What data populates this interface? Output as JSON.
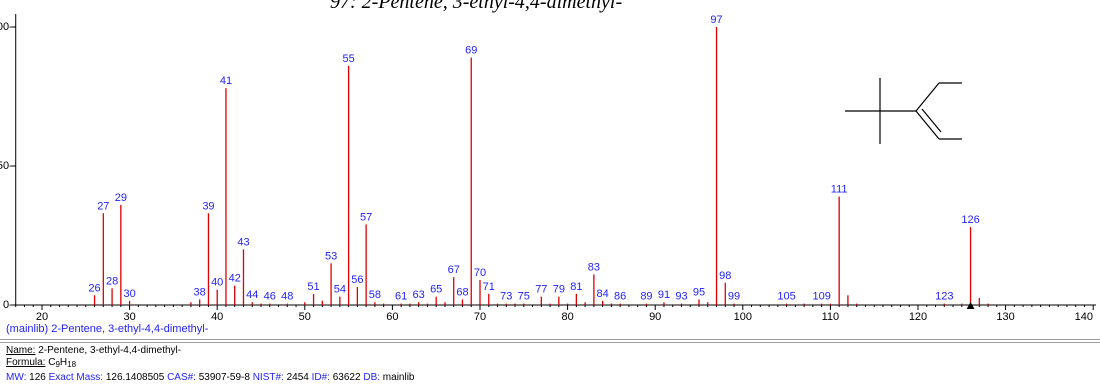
{
  "title": "97:    2-Pentene, 3-ethyl-4,4-dimethyl-",
  "library_caption": "(mainlib) 2-Pentene, 3-ethyl-4,4-dimethyl-",
  "compound": {
    "name_label": "Name:",
    "name": "2-Pentene, 3-ethyl-4,4-dimethyl-",
    "formula_label": "Formula:",
    "formula_main": "C",
    "formula_sub1": "9",
    "formula_mid": "H",
    "formula_sub2": "18",
    "mw_label": "MW:",
    "mw": "126",
    "exact_mass_label": "Exact Mass:",
    "exact_mass": "126.1408505",
    "cas_label": "CAS#:",
    "cas": "53907-59-8",
    "nist_label": "NIST#:",
    "nist": "2454",
    "id_label": "ID#:",
    "id": "63622",
    "db_label": "DB:",
    "db": "mainlib"
  },
  "colors": {
    "peak": "#e00000",
    "label": "#1f1fff",
    "axis": "#000000",
    "structure": "#000000"
  },
  "chart_data": {
    "type": "bar",
    "title": "2-Pentene, 3-ethyl-4,4-dimethyl-",
    "xlabel": "",
    "ylabel": "",
    "xlim": [
      17,
      140
    ],
    "ylim": [
      0,
      100
    ],
    "x_ticks": [
      20,
      30,
      40,
      50,
      60,
      70,
      80,
      90,
      100,
      110,
      120,
      130,
      140
    ],
    "y_ticks": [
      0,
      50,
      100
    ],
    "grid": false,
    "legend": "none",
    "molecular_ion_marker": 126,
    "peaks": [
      {
        "mz": 26,
        "intensity": 3.5,
        "label": "26"
      },
      {
        "mz": 27,
        "intensity": 33,
        "label": "27"
      },
      {
        "mz": 28,
        "intensity": 6,
        "label": "28"
      },
      {
        "mz": 29,
        "intensity": 36,
        "label": "29"
      },
      {
        "mz": 30,
        "intensity": 1.5,
        "label": "30"
      },
      {
        "mz": 37,
        "intensity": 1,
        "label": ""
      },
      {
        "mz": 38,
        "intensity": 2,
        "label": "38"
      },
      {
        "mz": 39,
        "intensity": 33,
        "label": "39"
      },
      {
        "mz": 40,
        "intensity": 5.5,
        "label": "40"
      },
      {
        "mz": 41,
        "intensity": 78,
        "label": "41"
      },
      {
        "mz": 42,
        "intensity": 7,
        "label": "42"
      },
      {
        "mz": 43,
        "intensity": 20,
        "label": "43"
      },
      {
        "mz": 44,
        "intensity": 1,
        "label": "44"
      },
      {
        "mz": 45,
        "intensity": 0.5,
        "label": ""
      },
      {
        "mz": 46,
        "intensity": 0.5,
        "label": "46"
      },
      {
        "mz": 48,
        "intensity": 0.5,
        "label": "48"
      },
      {
        "mz": 50,
        "intensity": 1,
        "label": ""
      },
      {
        "mz": 51,
        "intensity": 4,
        "label": "51"
      },
      {
        "mz": 52,
        "intensity": 1.5,
        "label": ""
      },
      {
        "mz": 53,
        "intensity": 15,
        "label": "53"
      },
      {
        "mz": 54,
        "intensity": 3,
        "label": "54"
      },
      {
        "mz": 55,
        "intensity": 86,
        "label": "55"
      },
      {
        "mz": 56,
        "intensity": 6.5,
        "label": "56"
      },
      {
        "mz": 57,
        "intensity": 29,
        "label": "57"
      },
      {
        "mz": 58,
        "intensity": 1,
        "label": "58"
      },
      {
        "mz": 59,
        "intensity": 0.5,
        "label": ""
      },
      {
        "mz": 61,
        "intensity": 0.5,
        "label": "61"
      },
      {
        "mz": 62,
        "intensity": 0.5,
        "label": ""
      },
      {
        "mz": 63,
        "intensity": 1,
        "label": "63"
      },
      {
        "mz": 64,
        "intensity": 0.5,
        "label": ""
      },
      {
        "mz": 65,
        "intensity": 3,
        "label": "65"
      },
      {
        "mz": 66,
        "intensity": 1,
        "label": ""
      },
      {
        "mz": 67,
        "intensity": 10,
        "label": "67"
      },
      {
        "mz": 68,
        "intensity": 2,
        "label": "68"
      },
      {
        "mz": 69,
        "intensity": 89,
        "label": "69"
      },
      {
        "mz": 70,
        "intensity": 9,
        "label": "70"
      },
      {
        "mz": 71,
        "intensity": 4,
        "label": "71"
      },
      {
        "mz": 72,
        "intensity": 0.5,
        "label": ""
      },
      {
        "mz": 73,
        "intensity": 0.5,
        "label": "73"
      },
      {
        "mz": 74,
        "intensity": 0.5,
        "label": ""
      },
      {
        "mz": 75,
        "intensity": 0.5,
        "label": "75"
      },
      {
        "mz": 77,
        "intensity": 3,
        "label": "77"
      },
      {
        "mz": 78,
        "intensity": 0.5,
        "label": ""
      },
      {
        "mz": 79,
        "intensity": 3,
        "label": "79"
      },
      {
        "mz": 80,
        "intensity": 0.5,
        "label": ""
      },
      {
        "mz": 81,
        "intensity": 4,
        "label": "81"
      },
      {
        "mz": 82,
        "intensity": 1,
        "label": ""
      },
      {
        "mz": 83,
        "intensity": 11,
        "label": "83"
      },
      {
        "mz": 84,
        "intensity": 1.5,
        "label": "84"
      },
      {
        "mz": 85,
        "intensity": 0.5,
        "label": ""
      },
      {
        "mz": 86,
        "intensity": 0.5,
        "label": "86"
      },
      {
        "mz": 89,
        "intensity": 0.5,
        "label": "89"
      },
      {
        "mz": 91,
        "intensity": 1,
        "label": "91"
      },
      {
        "mz": 93,
        "intensity": 0.5,
        "label": "93"
      },
      {
        "mz": 95,
        "intensity": 2,
        "label": "95"
      },
      {
        "mz": 96,
        "intensity": 1,
        "label": ""
      },
      {
        "mz": 97,
        "intensity": 100,
        "label": "97"
      },
      {
        "mz": 98,
        "intensity": 8,
        "label": "98"
      },
      {
        "mz": 99,
        "intensity": 0.5,
        "label": "99"
      },
      {
        "mz": 105,
        "intensity": 0.5,
        "label": "105"
      },
      {
        "mz": 107,
        "intensity": 0.5,
        "label": ""
      },
      {
        "mz": 109,
        "intensity": 0.5,
        "label": "109"
      },
      {
        "mz": 110,
        "intensity": 0.5,
        "label": ""
      },
      {
        "mz": 111,
        "intensity": 39,
        "label": "111"
      },
      {
        "mz": 112,
        "intensity": 3.5,
        "label": ""
      },
      {
        "mz": 113,
        "intensity": 0.5,
        "label": ""
      },
      {
        "mz": 123,
        "intensity": 0.5,
        "label": "123"
      },
      {
        "mz": 125,
        "intensity": 0.5,
        "label": ""
      },
      {
        "mz": 126,
        "intensity": 28,
        "label": "126"
      },
      {
        "mz": 127,
        "intensity": 2.5,
        "label": ""
      },
      {
        "mz": 128,
        "intensity": 0.5,
        "label": ""
      }
    ]
  }
}
